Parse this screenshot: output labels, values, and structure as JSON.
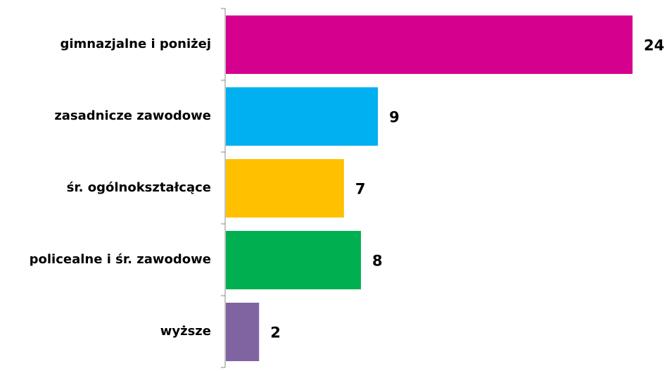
{
  "chart_data": {
    "type": "bar",
    "orientation": "horizontal",
    "categories": [
      "gimnazjalne i poniżej",
      "zasadnicze zawodowe",
      "śr. ogólnokształcące",
      "policealne i śr. zawodowe",
      "wyższe"
    ],
    "values": [
      24,
      9,
      7,
      8,
      2
    ],
    "colors": [
      "#d6008f",
      "#00b0f0",
      "#ffc000",
      "#00b050",
      "#8064a2"
    ]
  }
}
